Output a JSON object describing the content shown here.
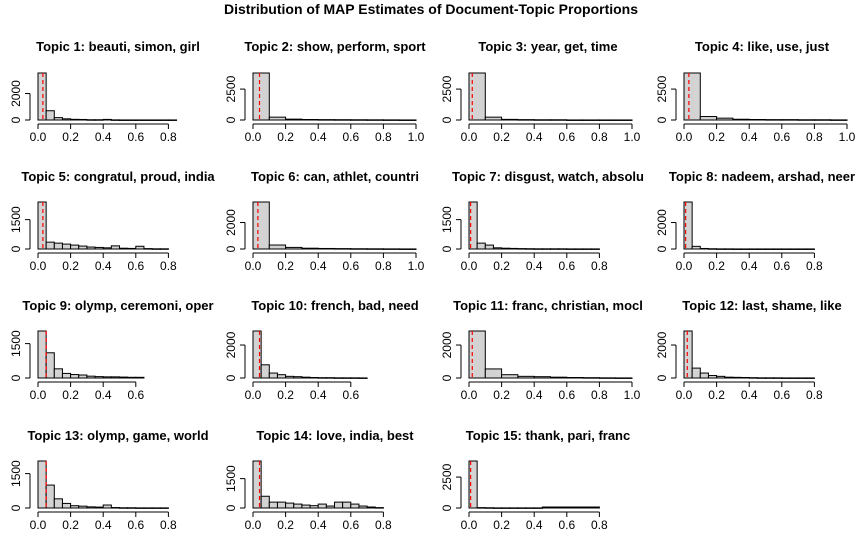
{
  "figure": {
    "title": "Distribution of MAP Estimates of Document-Topic Proportions"
  },
  "style": {
    "bar_fill": "#d3d3d3",
    "bar_stroke": "#000000",
    "mean_line": "#ff0000",
    "axis": "#000000"
  },
  "chart_data": [
    {
      "type": "bar",
      "title": "Topic 1: beauti, simon, girl",
      "bin_width": 0.05,
      "bin_start": 0,
      "values": [
        3550,
        700,
        180,
        90,
        50,
        40,
        20,
        20,
        45,
        10,
        5,
        5,
        5,
        5,
        5,
        5,
        5
      ],
      "mean": 0.03,
      "xlim": [
        0,
        0.85
      ],
      "xticks": [
        "0.0",
        "0.2",
        "0.4",
        "0.6",
        "0.8"
      ],
      "xtick_values": [
        0,
        0.2,
        0.4,
        0.6,
        0.8
      ],
      "yticks": [
        "0",
        "2000"
      ],
      "ytick_values": [
        0,
        2000
      ],
      "ylim": [
        0,
        3550
      ]
    },
    {
      "type": "bar",
      "title": "Topic 2: show, perform, sport",
      "bin_width": 0.1,
      "bin_start": 0,
      "values": [
        3800,
        230,
        70,
        40,
        30,
        25,
        20,
        15,
        10,
        5
      ],
      "mean": 0.04,
      "xlim": [
        0,
        1.0
      ],
      "xticks": [
        "0.0",
        "0.2",
        "0.4",
        "0.6",
        "0.8",
        "1.0"
      ],
      "xtick_values": [
        0,
        0.2,
        0.4,
        0.6,
        0.8,
        1.0
      ],
      "yticks": [
        "0",
        "2500"
      ],
      "ytick_values": [
        0,
        2500
      ],
      "ylim": [
        0,
        3800
      ]
    },
    {
      "type": "bar",
      "title": "Topic 3: year, get, time",
      "bin_width": 0.1,
      "bin_start": 0,
      "values": [
        3800,
        230,
        50,
        30,
        20,
        20,
        5,
        5,
        5,
        5
      ],
      "mean": 0.02,
      "xlim": [
        0,
        1.0
      ],
      "xticks": [
        "0.0",
        "0.2",
        "0.4",
        "0.6",
        "0.8",
        "1.0"
      ],
      "xtick_values": [
        0,
        0.2,
        0.4,
        0.6,
        0.8,
        1.0
      ],
      "yticks": [
        "0",
        "2500"
      ],
      "ytick_values": [
        0,
        2500
      ],
      "ylim": [
        0,
        3800
      ]
    },
    {
      "type": "bar",
      "title": "Topic 4: like, use, just",
      "bin_width": 0.1,
      "bin_start": 0,
      "values": [
        3800,
        280,
        150,
        60,
        40,
        30,
        30,
        20,
        20,
        10
      ],
      "mean": 0.03,
      "xlim": [
        0,
        1.0
      ],
      "xticks": [
        "0.0",
        "0.2",
        "0.4",
        "0.6",
        "0.8",
        "1.0"
      ],
      "xtick_values": [
        0,
        0.2,
        0.4,
        0.6,
        0.8,
        1.0
      ],
      "yticks": [
        "0",
        "2500"
      ],
      "ytick_values": [
        0,
        2500
      ],
      "ylim": [
        0,
        3800
      ]
    },
    {
      "type": "bar",
      "title": "Topic 5: congratul, proud, india",
      "bin_width": 0.05,
      "bin_start": 0,
      "values": [
        2400,
        350,
        300,
        250,
        200,
        150,
        100,
        80,
        60,
        160,
        40,
        30,
        140,
        20,
        10,
        10
      ],
      "mean": 0.03,
      "xlim": [
        0,
        0.8
      ],
      "xticks": [
        "0.0",
        "0.2",
        "0.4",
        "0.6",
        "0.8"
      ],
      "xtick_values": [
        0,
        0.2,
        0.4,
        0.6,
        0.8
      ],
      "yticks": [
        "0",
        "1500"
      ],
      "ytick_values": [
        0,
        1500
      ],
      "ylim": [
        0,
        2400
      ]
    },
    {
      "type": "bar",
      "title": "Topic 6: can, athlet, countri",
      "bin_width": 0.1,
      "bin_start": 0,
      "values": [
        3550,
        300,
        120,
        60,
        40,
        30,
        20,
        15,
        10,
        5
      ],
      "mean": 0.03,
      "xlim": [
        0,
        1.0
      ],
      "xticks": [
        "0.0",
        "0.2",
        "0.4",
        "0.6",
        "0.8",
        "1.0"
      ],
      "xtick_values": [
        0,
        0.2,
        0.4,
        0.6,
        0.8,
        1.0
      ],
      "yticks": [
        "0",
        "2000"
      ],
      "ytick_values": [
        0,
        2000
      ],
      "ylim": [
        0,
        3550
      ]
    },
    {
      "type": "bar",
      "title": "Topic 7: disgust, watch, absolu",
      "bin_width": 0.05,
      "bin_start": 0,
      "values": [
        2400,
        300,
        200,
        60,
        40,
        30,
        20,
        15,
        10,
        10,
        10,
        10,
        5,
        5,
        5,
        5
      ],
      "mean": 0.01,
      "xlim": [
        0,
        0.8
      ],
      "xticks": [
        "0.0",
        "0.2",
        "0.4",
        "0.6",
        "0.8"
      ],
      "xtick_values": [
        0,
        0.2,
        0.4,
        0.6,
        0.8
      ],
      "yticks": [
        "0",
        "1500"
      ],
      "ytick_values": [
        0,
        1500
      ],
      "ylim": [
        0,
        2400
      ]
    },
    {
      "type": "bar",
      "title": "Topic 8: nadeem, arshad, neer",
      "bin_width": 0.05,
      "bin_start": 0,
      "values": [
        3550,
        200,
        40,
        20,
        10,
        10,
        5,
        5,
        5,
        5,
        5,
        5,
        5,
        5,
        5,
        5
      ],
      "mean": 0.01,
      "xlim": [
        0,
        0.8
      ],
      "xticks": [
        "0.0",
        "0.2",
        "0.4",
        "0.6",
        "0.8"
      ],
      "xtick_values": [
        0,
        0.2,
        0.4,
        0.6,
        0.8
      ],
      "yticks": [
        "0",
        "2000"
      ],
      "ytick_values": [
        0,
        2000
      ],
      "ylim": [
        0,
        3550
      ]
    },
    {
      "type": "bar",
      "title": "Topic 9: olymp, ceremoni, oper",
      "bin_width": 0.05,
      "bin_start": 0,
      "values": [
        2050,
        1100,
        400,
        200,
        150,
        130,
        80,
        60,
        50,
        50,
        40,
        30,
        30
      ],
      "mean": 0.05,
      "xlim": [
        0,
        0.7
      ],
      "xticks": [
        "0.0",
        "0.2",
        "0.4",
        "0.6"
      ],
      "xtick_values": [
        0,
        0.2,
        0.4,
        0.6
      ],
      "yticks": [
        "0",
        "1500"
      ],
      "ytick_values": [
        0,
        1500
      ],
      "ylim": [
        0,
        2050
      ]
    },
    {
      "type": "bar",
      "title": "Topic 10: french, bad, need",
      "bin_width": 0.05,
      "bin_start": 0,
      "values": [
        2850,
        800,
        300,
        200,
        100,
        80,
        50,
        30,
        20,
        20,
        10,
        10,
        10,
        5
      ],
      "mean": 0.04,
      "xlim": [
        0,
        0.7
      ],
      "xticks": [
        "0.0",
        "0.2",
        "0.4",
        "0.6"
      ],
      "xtick_values": [
        0,
        0.2,
        0.4,
        0.6
      ],
      "yticks": [
        "0",
        "2000"
      ],
      "ytick_values": [
        0,
        2000
      ],
      "ylim": [
        0,
        2850
      ]
    },
    {
      "type": "bar",
      "title": "Topic 11: franc, christian, mocl",
      "bin_width": 0.1,
      "bin_start": 0,
      "values": [
        2850,
        550,
        200,
        100,
        80,
        50,
        30,
        20,
        10,
        5
      ],
      "mean": 0.02,
      "xlim": [
        0,
        1.0
      ],
      "xticks": [
        "0.0",
        "0.2",
        "0.4",
        "0.6",
        "0.8",
        "1.0"
      ],
      "xtick_values": [
        0,
        0.2,
        0.4,
        0.6,
        0.8,
        1.0
      ],
      "yticks": [
        "0",
        "2000"
      ],
      "ytick_values": [
        0,
        2000
      ],
      "ylim": [
        0,
        2850
      ]
    },
    {
      "type": "bar",
      "title": "Topic 12: last, shame, like",
      "bin_width": 0.05,
      "bin_start": 0,
      "values": [
        2850,
        600,
        300,
        150,
        100,
        50,
        40,
        30,
        20,
        10,
        10,
        10,
        5,
        5,
        5,
        5
      ],
      "mean": 0.02,
      "xlim": [
        0,
        0.8
      ],
      "xticks": [
        "0.0",
        "0.2",
        "0.4",
        "0.6",
        "0.8"
      ],
      "xtick_values": [
        0,
        0.2,
        0.4,
        0.6,
        0.8
      ],
      "yticks": [
        "0",
        "2000"
      ],
      "ytick_values": [
        0,
        2000
      ],
      "ylim": [
        0,
        2850
      ]
    },
    {
      "type": "bar",
      "title": "Topic 13: olymp, game, world",
      "bin_width": 0.05,
      "bin_start": 0,
      "values": [
        2050,
        1000,
        400,
        200,
        100,
        80,
        50,
        40,
        130,
        20,
        10,
        10,
        5,
        5,
        5,
        5
      ],
      "mean": 0.05,
      "xlim": [
        0,
        0.8
      ],
      "xticks": [
        "0.0",
        "0.2",
        "0.4",
        "0.6",
        "0.8"
      ],
      "xtick_values": [
        0,
        0.2,
        0.4,
        0.6,
        0.8
      ],
      "yticks": [
        "0",
        "1500"
      ],
      "ytick_values": [
        0,
        1500
      ],
      "ylim": [
        0,
        2050
      ]
    },
    {
      "type": "bar",
      "title": "Topic 14: love, india, best",
      "bin_width": 0.05,
      "bin_start": 0,
      "values": [
        2400,
        600,
        300,
        300,
        250,
        200,
        150,
        120,
        200,
        100,
        300,
        300,
        200,
        100,
        50,
        20
      ],
      "mean": 0.04,
      "xlim": [
        0,
        0.8
      ],
      "xticks": [
        "0.0",
        "0.2",
        "0.4",
        "0.6",
        "0.8"
      ],
      "xtick_values": [
        0,
        0.2,
        0.4,
        0.6,
        0.8
      ],
      "yticks": [
        "0",
        "1500"
      ],
      "ytick_values": [
        0,
        1500
      ],
      "ylim": [
        0,
        2400
      ]
    },
    {
      "type": "bar",
      "title": "Topic 15: thank, pari, franc",
      "bin_width": 0.05,
      "bin_start": 0,
      "values": [
        3800,
        30,
        20,
        10,
        10,
        10,
        10,
        10,
        10,
        80,
        80,
        80,
        80,
        80,
        80,
        80
      ],
      "mean": 0.01,
      "xlim": [
        0,
        0.8
      ],
      "xticks": [
        "0.0",
        "0.2",
        "0.4",
        "0.6",
        "0.8"
      ],
      "xtick_values": [
        0,
        0.2,
        0.4,
        0.6,
        0.8
      ],
      "yticks": [
        "0",
        "2500"
      ],
      "ytick_values": [
        0,
        2500
      ],
      "ylim": [
        0,
        3800
      ]
    }
  ]
}
